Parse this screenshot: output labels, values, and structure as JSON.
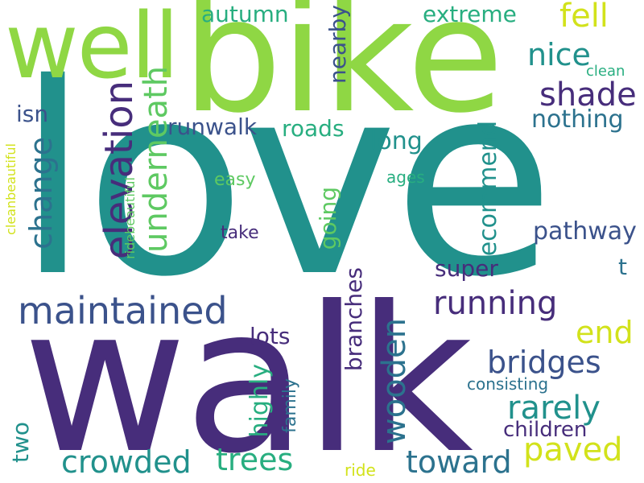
{
  "palette": {
    "dark_purple": "#472d7b",
    "indigo": "#3b528b",
    "blue": "#2c728e",
    "teal": "#21918c",
    "green": "#28ae80",
    "light_green": "#5ec962",
    "lime": "#8fd744",
    "yellow": "#d2e21b",
    "background": "#ffffff"
  },
  "words": [
    "love",
    "bike",
    "walk",
    "well",
    "maintained",
    "elevation",
    "change",
    "underneath",
    "running",
    "wooden",
    "bridges",
    "shade",
    "nice",
    "fell",
    "extreme",
    "autumn",
    "nearby",
    "clean",
    "nothing",
    "roads",
    "runwalk",
    "long",
    "recommend",
    "pathway",
    "t",
    "super",
    "isn",
    "easy",
    "ages",
    "take",
    "going",
    "branches",
    "lots",
    "highly",
    "family",
    "consisting",
    "end",
    "rarely",
    "children",
    "paved",
    "toward",
    "trees",
    "crowded",
    "two",
    "ride",
    "cleanbeautiful",
    "ridebeautiful"
  ]
}
